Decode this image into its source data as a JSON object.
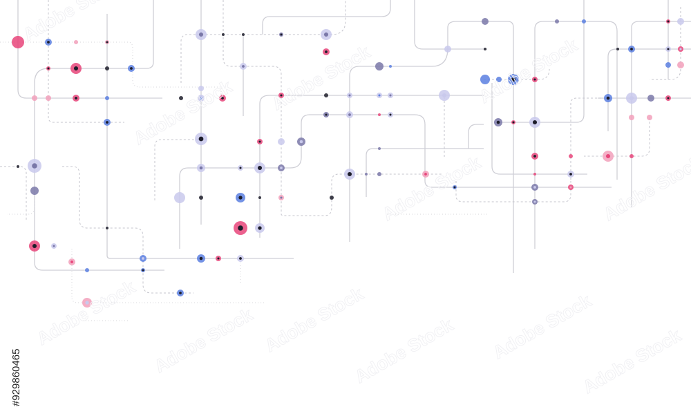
{
  "watermark": "Adobe Stock",
  "image_id": "#929860465"
}
